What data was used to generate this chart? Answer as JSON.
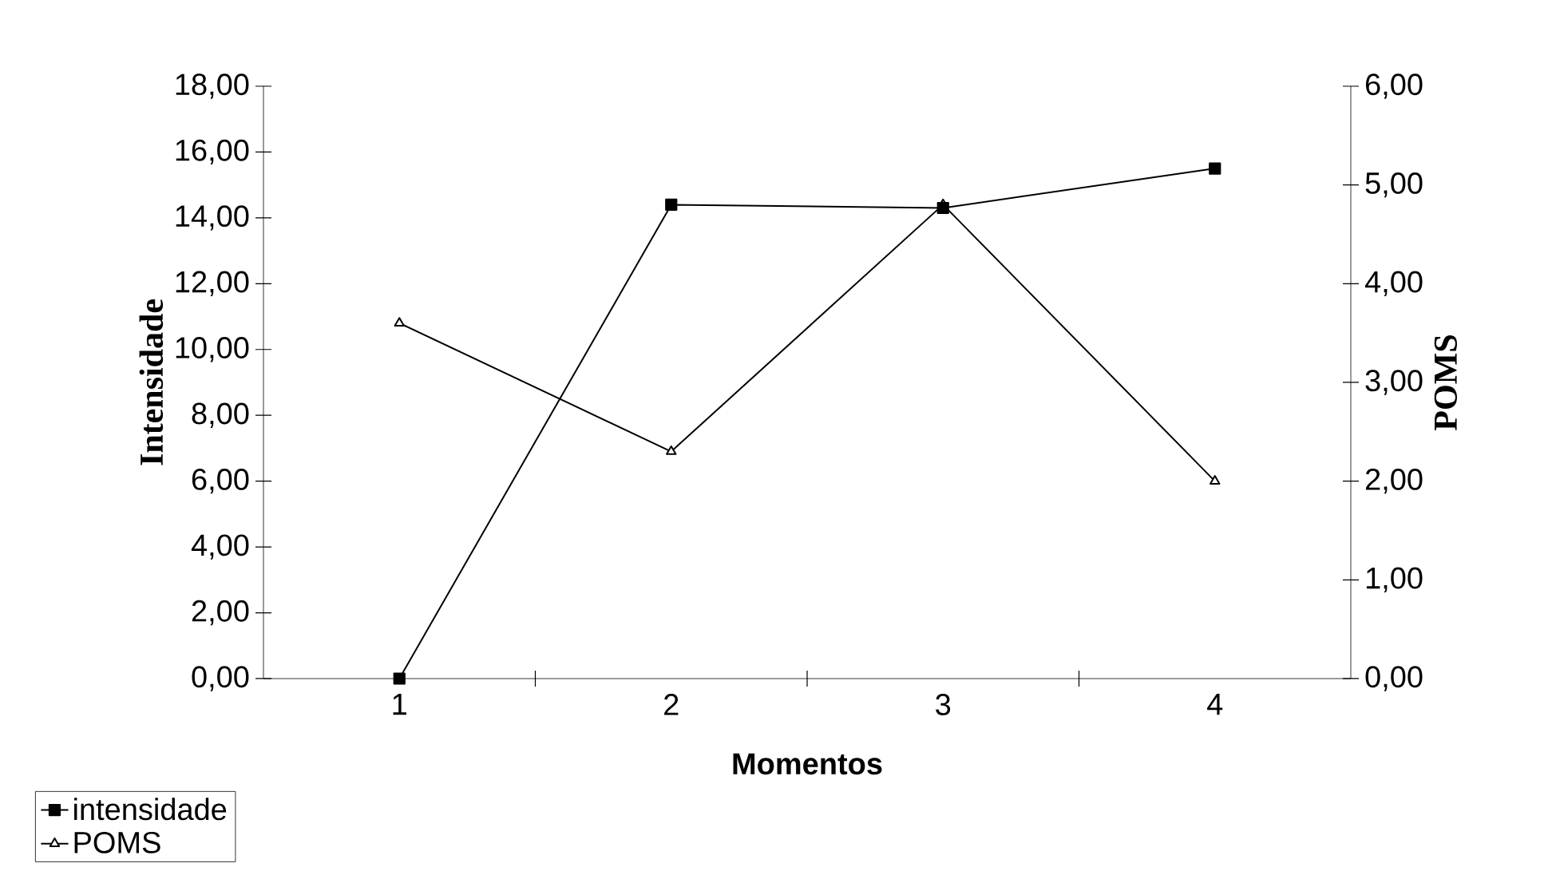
{
  "chart_data": {
    "type": "line",
    "xlabel": "Momentos",
    "ylabel": "Intensidade",
    "y2label": "POMS",
    "categories": [
      "1",
      "2",
      "3",
      "4"
    ],
    "series": [
      {
        "name": "intensidade",
        "color": "#000000",
        "marker": "square",
        "values": [
          0.0,
          14.4,
          14.3,
          15.5
        ]
      },
      {
        "name": "POMS",
        "color": "#000000",
        "marker": "triangle",
        "axis": "y2",
        "values": [
          3.6,
          2.3,
          4.8,
          2.0
        ]
      }
    ],
    "ylim": [
      0,
      18
    ],
    "yticks": [
      {
        "value": 0,
        "label": "0,00"
      },
      {
        "value": 2,
        "label": "2,00"
      },
      {
        "value": 4,
        "label": "4,00"
      },
      {
        "value": 6,
        "label": "6,00"
      },
      {
        "value": 8,
        "label": "8,00"
      },
      {
        "value": 10,
        "label": "10,00"
      },
      {
        "value": 12,
        "label": "12,00"
      },
      {
        "value": 14,
        "label": "14,00"
      },
      {
        "value": 16,
        "label": "16,00"
      },
      {
        "value": 18,
        "label": "18,00"
      }
    ],
    "y2lim": [
      0,
      6
    ],
    "y2ticks": [
      {
        "value": 0,
        "label": "0,00"
      },
      {
        "value": 1,
        "label": "1,00"
      },
      {
        "value": 2,
        "label": "2,00"
      },
      {
        "value": 3,
        "label": "3,00"
      },
      {
        "value": 4,
        "label": "4,00"
      },
      {
        "value": 5,
        "label": "5,00"
      },
      {
        "value": 6,
        "label": "6,00"
      }
    ],
    "legend": "bottom left",
    "grid": false,
    "line_style": "solid"
  }
}
